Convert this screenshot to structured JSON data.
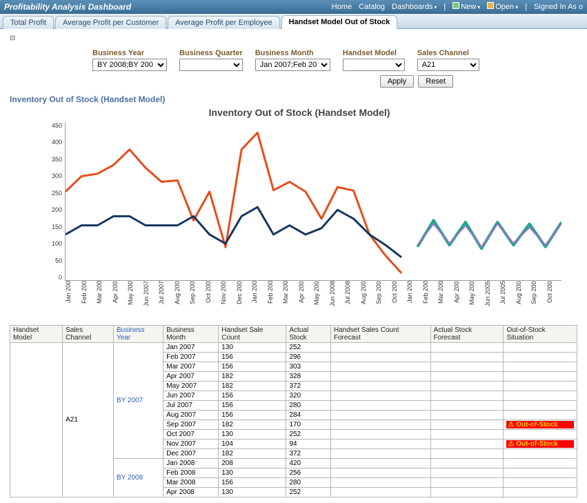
{
  "topbar": {
    "title": "Profitability Analysis Dashboard",
    "links": {
      "home": "Home",
      "catalog": "Catalog",
      "dashboards": "Dashboards",
      "new": "New",
      "open": "Open",
      "signedin": "Signed In As  o"
    }
  },
  "tabs": [
    {
      "label": "Total Profit"
    },
    {
      "label": "Average Profit per Customer"
    },
    {
      "label": "Average Profit per Employee"
    },
    {
      "label": "Handset Model Out of Stock",
      "active": true
    }
  ],
  "filters": {
    "business_year": {
      "label": "Business Year",
      "value": "BY 2008;BY 200"
    },
    "business_quarter": {
      "label": "Business Quarter",
      "value": ""
    },
    "business_month": {
      "label": "Business Month",
      "value": "Jan 2007;Feb 20"
    },
    "handset_model": {
      "label": "Handset Model",
      "value": ""
    },
    "sales_channel": {
      "label": "Sales Channel",
      "value": "A21"
    },
    "apply": "Apply",
    "reset": "Reset"
  },
  "section": {
    "title": "Inventory Out of Stock (Handset Model)"
  },
  "chart": {
    "title": "Inventory Out of Stock (Handset Model)",
    "type": "line",
    "ylim": [
      0,
      450
    ],
    "ytick_step": 50,
    "yticks": [
      450,
      400,
      350,
      300,
      250,
      200,
      150,
      100,
      50,
      0
    ],
    "xlabels": [
      "Jan 200",
      "Feb 200",
      "Mar 200",
      "Apr 200",
      "May 200",
      "Jun 2007",
      "Jul 2007",
      "Aug 200",
      "Sep 200",
      "Oct 200",
      "Nov 200",
      "Dec 200",
      "Jan 200",
      "Feb 200",
      "Mar 200",
      "Apr 200",
      "May 200",
      "Jun 2008",
      "Jul 2008",
      "Aug 200",
      "Sep 200",
      "Oct 200",
      "Jan 200",
      "Feb 200",
      "Mar 200",
      "Apr 200",
      "May 200",
      "Jun 2005",
      "Jul 2005",
      "Aug 200",
      "Sep 200",
      "Oct 200"
    ],
    "series": [
      {
        "name": "actual_stock",
        "color": "#e84c1a",
        "width": 3,
        "values": [
          252,
          296,
          303,
          328,
          372,
          320,
          280,
          284,
          170,
          252,
          94,
          372,
          420,
          256,
          280,
          252,
          175,
          265,
          255,
          130,
          70,
          20,
          null,
          null,
          null,
          null,
          null,
          null,
          null,
          null,
          null,
          null
        ]
      },
      {
        "name": "sale_count",
        "color": "#16365e",
        "width": 3,
        "values": [
          130,
          156,
          156,
          182,
          182,
          156,
          156,
          156,
          182,
          130,
          104,
          182,
          208,
          130,
          156,
          130,
          148,
          200,
          175,
          130,
          100,
          65,
          null,
          null,
          null,
          null,
          null,
          null,
          null,
          null,
          null,
          null
        ]
      },
      {
        "name": "forecast_stock",
        "color": "#1aa68a",
        "width": 4,
        "values": [
          null,
          null,
          null,
          null,
          null,
          null,
          null,
          null,
          null,
          null,
          null,
          null,
          null,
          null,
          null,
          null,
          null,
          null,
          null,
          null,
          null,
          null,
          95,
          170,
          100,
          165,
          90,
          165,
          100,
          160,
          95,
          165
        ]
      },
      {
        "name": "forecast_sale",
        "color": "#a86fc9",
        "width": 2,
        "values": [
          null,
          null,
          null,
          null,
          null,
          null,
          null,
          null,
          null,
          null,
          null,
          null,
          null,
          null,
          null,
          null,
          null,
          null,
          null,
          null,
          null,
          null,
          100,
          160,
          105,
          155,
          95,
          160,
          105,
          150,
          100,
          160
        ]
      }
    ]
  },
  "table": {
    "columns": [
      "Handset Model",
      "Sales Channel",
      "Business Year",
      "Business Month",
      "Handset Sale Count",
      "Actual Stock",
      "Handset Sales Count Forecast",
      "Actual Stock Forecast",
      "Out-of-Stock Situation"
    ],
    "handset_model": "",
    "sales_channel": "A21",
    "years": [
      {
        "year": "BY 2007",
        "rows": [
          {
            "month": "Jan 2007",
            "sale": 130,
            "stock": 252,
            "fc": "",
            "sf": "",
            "oos": ""
          },
          {
            "month": "Feb 2007",
            "sale": 156,
            "stock": 296,
            "fc": "",
            "sf": "",
            "oos": ""
          },
          {
            "month": "Mar 2007",
            "sale": 156,
            "stock": 303,
            "fc": "",
            "sf": "",
            "oos": ""
          },
          {
            "month": "Apr 2007",
            "sale": 182,
            "stock": 328,
            "fc": "",
            "sf": "",
            "oos": ""
          },
          {
            "month": "May 2007",
            "sale": 182,
            "stock": 372,
            "fc": "",
            "sf": "",
            "oos": ""
          },
          {
            "month": "Jun 2007",
            "sale": 156,
            "stock": 320,
            "fc": "",
            "sf": "",
            "oos": ""
          },
          {
            "month": "Jul 2007",
            "sale": 156,
            "stock": 280,
            "fc": "",
            "sf": "",
            "oos": ""
          },
          {
            "month": "Aug 2007",
            "sale": 156,
            "stock": 284,
            "fc": "",
            "sf": "",
            "oos": ""
          },
          {
            "month": "Sep 2007",
            "sale": 182,
            "stock": 170,
            "fc": "",
            "sf": "",
            "oos": "Out-of-Stock"
          },
          {
            "month": "Oct 2007",
            "sale": 130,
            "stock": 252,
            "fc": "",
            "sf": "",
            "oos": ""
          },
          {
            "month": "Nov 2007",
            "sale": 104,
            "stock": 94,
            "fc": "",
            "sf": "",
            "oos": "Out-of-Stock"
          },
          {
            "month": "Dec 2007",
            "sale": 182,
            "stock": 372,
            "fc": "",
            "sf": "",
            "oos": ""
          }
        ]
      },
      {
        "year": "BY 2008",
        "rows": [
          {
            "month": "Jan 2008",
            "sale": 208,
            "stock": 420,
            "fc": "",
            "sf": "",
            "oos": ""
          },
          {
            "month": "Feb 2008",
            "sale": 130,
            "stock": 256,
            "fc": "",
            "sf": "",
            "oos": ""
          },
          {
            "month": "Mar 2008",
            "sale": 156,
            "stock": 280,
            "fc": "",
            "sf": "",
            "oos": ""
          },
          {
            "month": "Apr 2008",
            "sale": 130,
            "stock": 252,
            "fc": "",
            "sf": "",
            "oos": ""
          }
        ]
      }
    ]
  }
}
